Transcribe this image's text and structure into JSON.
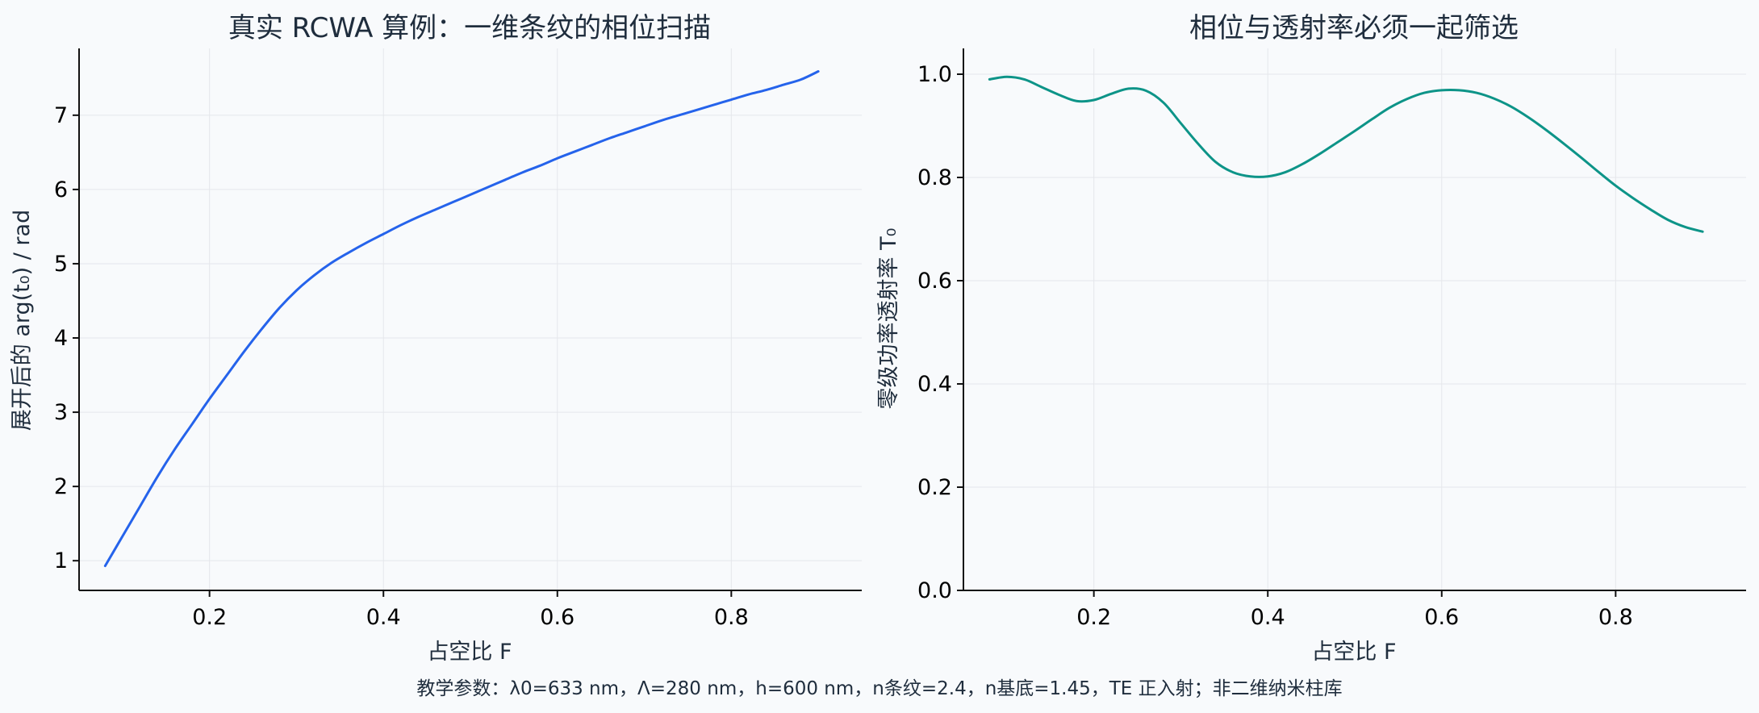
{
  "figure": {
    "footnote": "教学参数：λ0=633 nm，Λ=280 nm，h=600 nm，n条纹=2.4，n基底=1.45，TE 正入射；非二维纳米柱库"
  },
  "chart_data": [
    {
      "type": "line",
      "title": "真实 RCWA 算例：一维条纹的相位扫描",
      "xlabel": "占空比 F",
      "ylabel": "展开后的 arg(t₀) / rad",
      "xlim": [
        0.05,
        0.95
      ],
      "ylim": [
        0.6,
        7.9
      ],
      "xticks": [
        0.2,
        0.4,
        0.6,
        0.8
      ],
      "xtick_labels": [
        "0.2",
        "0.4",
        "0.6",
        "0.8"
      ],
      "yticks": [
        1,
        2,
        3,
        4,
        5,
        6,
        7
      ],
      "ytick_labels": [
        "1",
        "2",
        "3",
        "4",
        "5",
        "6",
        "7"
      ],
      "grid": true,
      "series": [
        {
          "color": "#2563eb",
          "x": [
            0.08,
            0.1,
            0.12,
            0.14,
            0.16,
            0.18,
            0.2,
            0.22,
            0.24,
            0.26,
            0.28,
            0.3,
            0.32,
            0.34,
            0.36,
            0.38,
            0.4,
            0.42,
            0.44,
            0.46,
            0.48,
            0.5,
            0.52,
            0.54,
            0.56,
            0.58,
            0.6,
            0.62,
            0.64,
            0.66,
            0.68,
            0.7,
            0.72,
            0.74,
            0.76,
            0.78,
            0.8,
            0.82,
            0.84,
            0.86,
            0.88,
            0.9
          ],
          "values": [
            0.93,
            1.33,
            1.73,
            2.13,
            2.5,
            2.84,
            3.18,
            3.5,
            3.82,
            4.12,
            4.4,
            4.64,
            4.84,
            5.01,
            5.15,
            5.28,
            5.4,
            5.52,
            5.63,
            5.73,
            5.83,
            5.93,
            6.03,
            6.13,
            6.23,
            6.32,
            6.42,
            6.51,
            6.6,
            6.69,
            6.77,
            6.85,
            6.93,
            7.0,
            7.07,
            7.14,
            7.21,
            7.28,
            7.34,
            7.41,
            7.48,
            7.59
          ]
        }
      ]
    },
    {
      "type": "line",
      "title": "相位与透射率必须一起筛选",
      "xlabel": "占空比 F",
      "ylabel": "零级功率透射率 T₀",
      "xlim": [
        0.05,
        0.95
      ],
      "ylim": [
        0.0,
        1.05
      ],
      "xticks": [
        0.2,
        0.4,
        0.6,
        0.8
      ],
      "xtick_labels": [
        "0.2",
        "0.4",
        "0.6",
        "0.8"
      ],
      "yticks": [
        0.0,
        0.2,
        0.4,
        0.6,
        0.8,
        1.0
      ],
      "ytick_labels": [
        "0.0",
        "0.2",
        "0.4",
        "0.6",
        "0.8",
        "1.0"
      ],
      "grid": true,
      "series": [
        {
          "color": "#0d9488",
          "x": [
            0.08,
            0.1,
            0.12,
            0.14,
            0.16,
            0.18,
            0.2,
            0.22,
            0.24,
            0.26,
            0.28,
            0.3,
            0.32,
            0.34,
            0.36,
            0.38,
            0.4,
            0.42,
            0.44,
            0.46,
            0.48,
            0.5,
            0.52,
            0.54,
            0.56,
            0.58,
            0.6,
            0.62,
            0.64,
            0.66,
            0.68,
            0.7,
            0.72,
            0.74,
            0.76,
            0.78,
            0.8,
            0.82,
            0.84,
            0.86,
            0.88,
            0.9
          ],
          "values": [
            0.99,
            0.995,
            0.99,
            0.975,
            0.96,
            0.948,
            0.95,
            0.962,
            0.972,
            0.968,
            0.945,
            0.905,
            0.865,
            0.83,
            0.81,
            0.802,
            0.802,
            0.81,
            0.826,
            0.846,
            0.868,
            0.89,
            0.913,
            0.935,
            0.952,
            0.964,
            0.969,
            0.969,
            0.964,
            0.953,
            0.937,
            0.916,
            0.892,
            0.866,
            0.839,
            0.811,
            0.784,
            0.76,
            0.738,
            0.718,
            0.704,
            0.695
          ]
        }
      ]
    }
  ]
}
